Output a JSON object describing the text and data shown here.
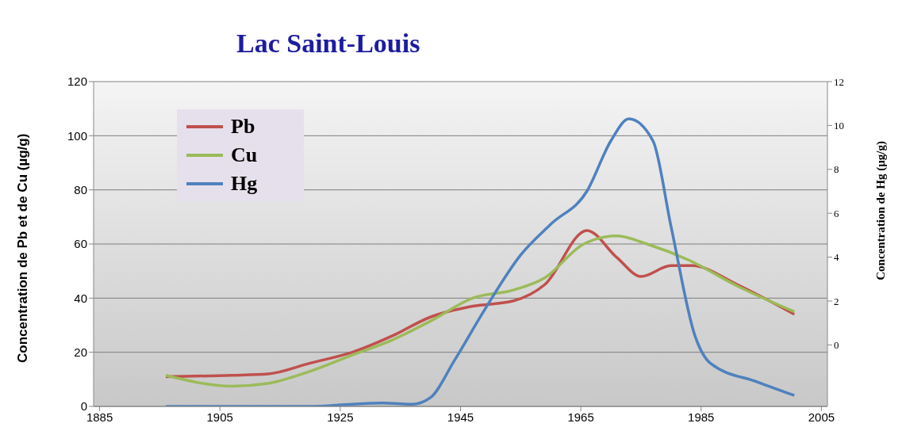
{
  "chart_data": {
    "type": "line",
    "title": "Lac Saint-Louis",
    "ylabel": "Concentration de Pb et de Cu (µg/g)",
    "y2label": "Concentration de Hg (µg/g)",
    "xlim": [
      1884,
      2006
    ],
    "xticks": [
      1885,
      1905,
      1925,
      1945,
      1965,
      1985,
      2005
    ],
    "ylim": [
      0,
      120
    ],
    "yticks": [
      0,
      20,
      40,
      60,
      80,
      100,
      120
    ],
    "y2lim": [
      -2.8,
      12
    ],
    "y2ticks": [
      0,
      2,
      4,
      6,
      8,
      10,
      12
    ],
    "grid": "y",
    "legend": "top left",
    "marker": "none",
    "line_style": "solid",
    "series": [
      {
        "name": "Pb",
        "color": "#c0504d",
        "x": [
          1896,
          1907,
          1913,
          1920,
          1927,
          1933.6,
          1940,
          1947,
          1953.8,
          1959,
          1966,
          1971,
          1975,
          1980,
          1983.5,
          1991,
          2000.5
        ],
        "values": [
          11,
          11.5,
          12,
          16,
          20,
          26,
          33,
          37,
          39,
          45,
          65,
          55,
          48,
          52,
          52,
          45,
          34
        ]
      },
      {
        "name": "Cu",
        "color": "#9bbb59",
        "x": [
          1896,
          1907,
          1913,
          1920,
          1927,
          1933.6,
          1940,
          1947,
          1953.8,
          1959,
          1965.5,
          1971,
          1976,
          1983,
          1991,
          2000.5
        ],
        "values": [
          11.5,
          7.5,
          8.5,
          13,
          19,
          24.5,
          31.5,
          40,
          43,
          47.5,
          60,
          63,
          60,
          54,
          44.5,
          35
        ]
      },
      {
        "name": "Hg",
        "color": "#4f81bd",
        "axis": "y2",
        "x": [
          1896,
          1907,
          1920,
          1927,
          1932,
          1937,
          1940,
          1944,
          1949,
          1955,
          1960,
          1966,
          1970,
          1973,
          1977,
          1980,
          1984,
          1986.6,
          1994.5,
          2000.5
        ],
        "values": [
          -2.8,
          -2.8,
          -2.8,
          -2.7,
          -2.65,
          -2.7,
          -2.4,
          -0.7,
          1.6,
          4.1,
          5.5,
          7,
          9.3,
          10.3,
          9.3,
          5.4,
          0.4,
          -0.85,
          -1.7,
          -2.3
        ]
      }
    ]
  }
}
